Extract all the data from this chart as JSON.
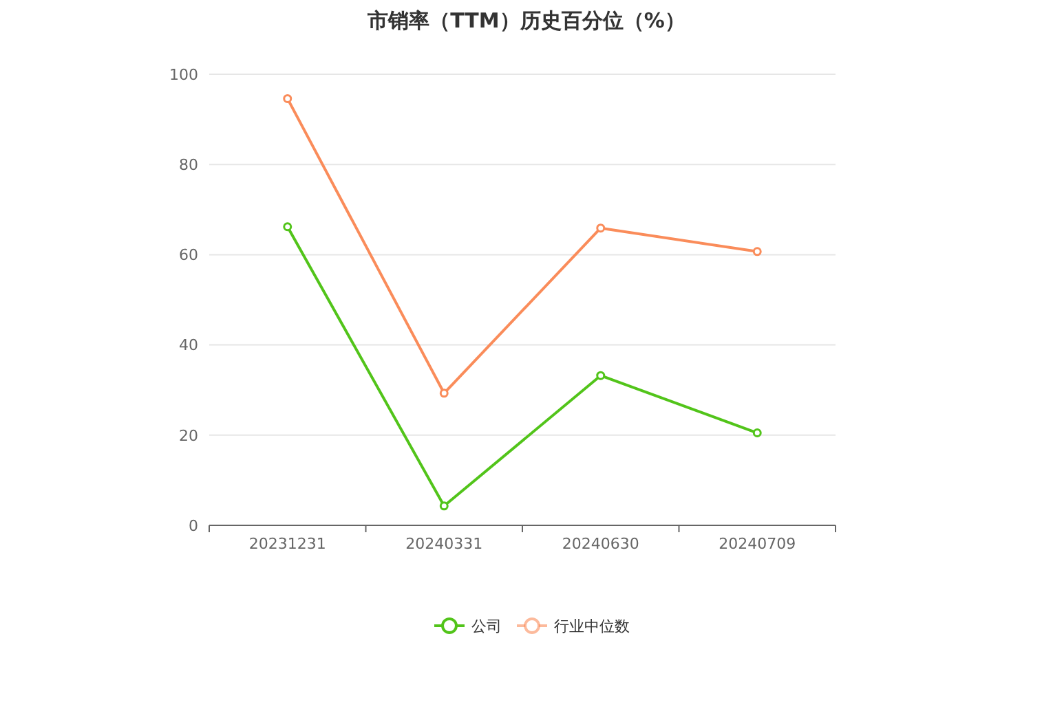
{
  "chart_data": {
    "type": "line",
    "title": "市销率（TTM）历史百分位（%）",
    "categories": [
      "20231231",
      "20240331",
      "20240630",
      "20240709"
    ],
    "series": [
      {
        "name": "公司",
        "color": "#52c41a",
        "values": [
          66.2,
          4.3,
          33.2,
          20.5
        ]
      },
      {
        "name": "行业中位数",
        "color": "#fa8c5a",
        "values": [
          94.6,
          29.3,
          65.9,
          60.7
        ]
      }
    ],
    "ylim": [
      0,
      100
    ],
    "yticks": [
      0,
      20,
      40,
      60,
      80,
      100
    ],
    "grid": "y",
    "legend": "bottom",
    "marker": "circle"
  }
}
